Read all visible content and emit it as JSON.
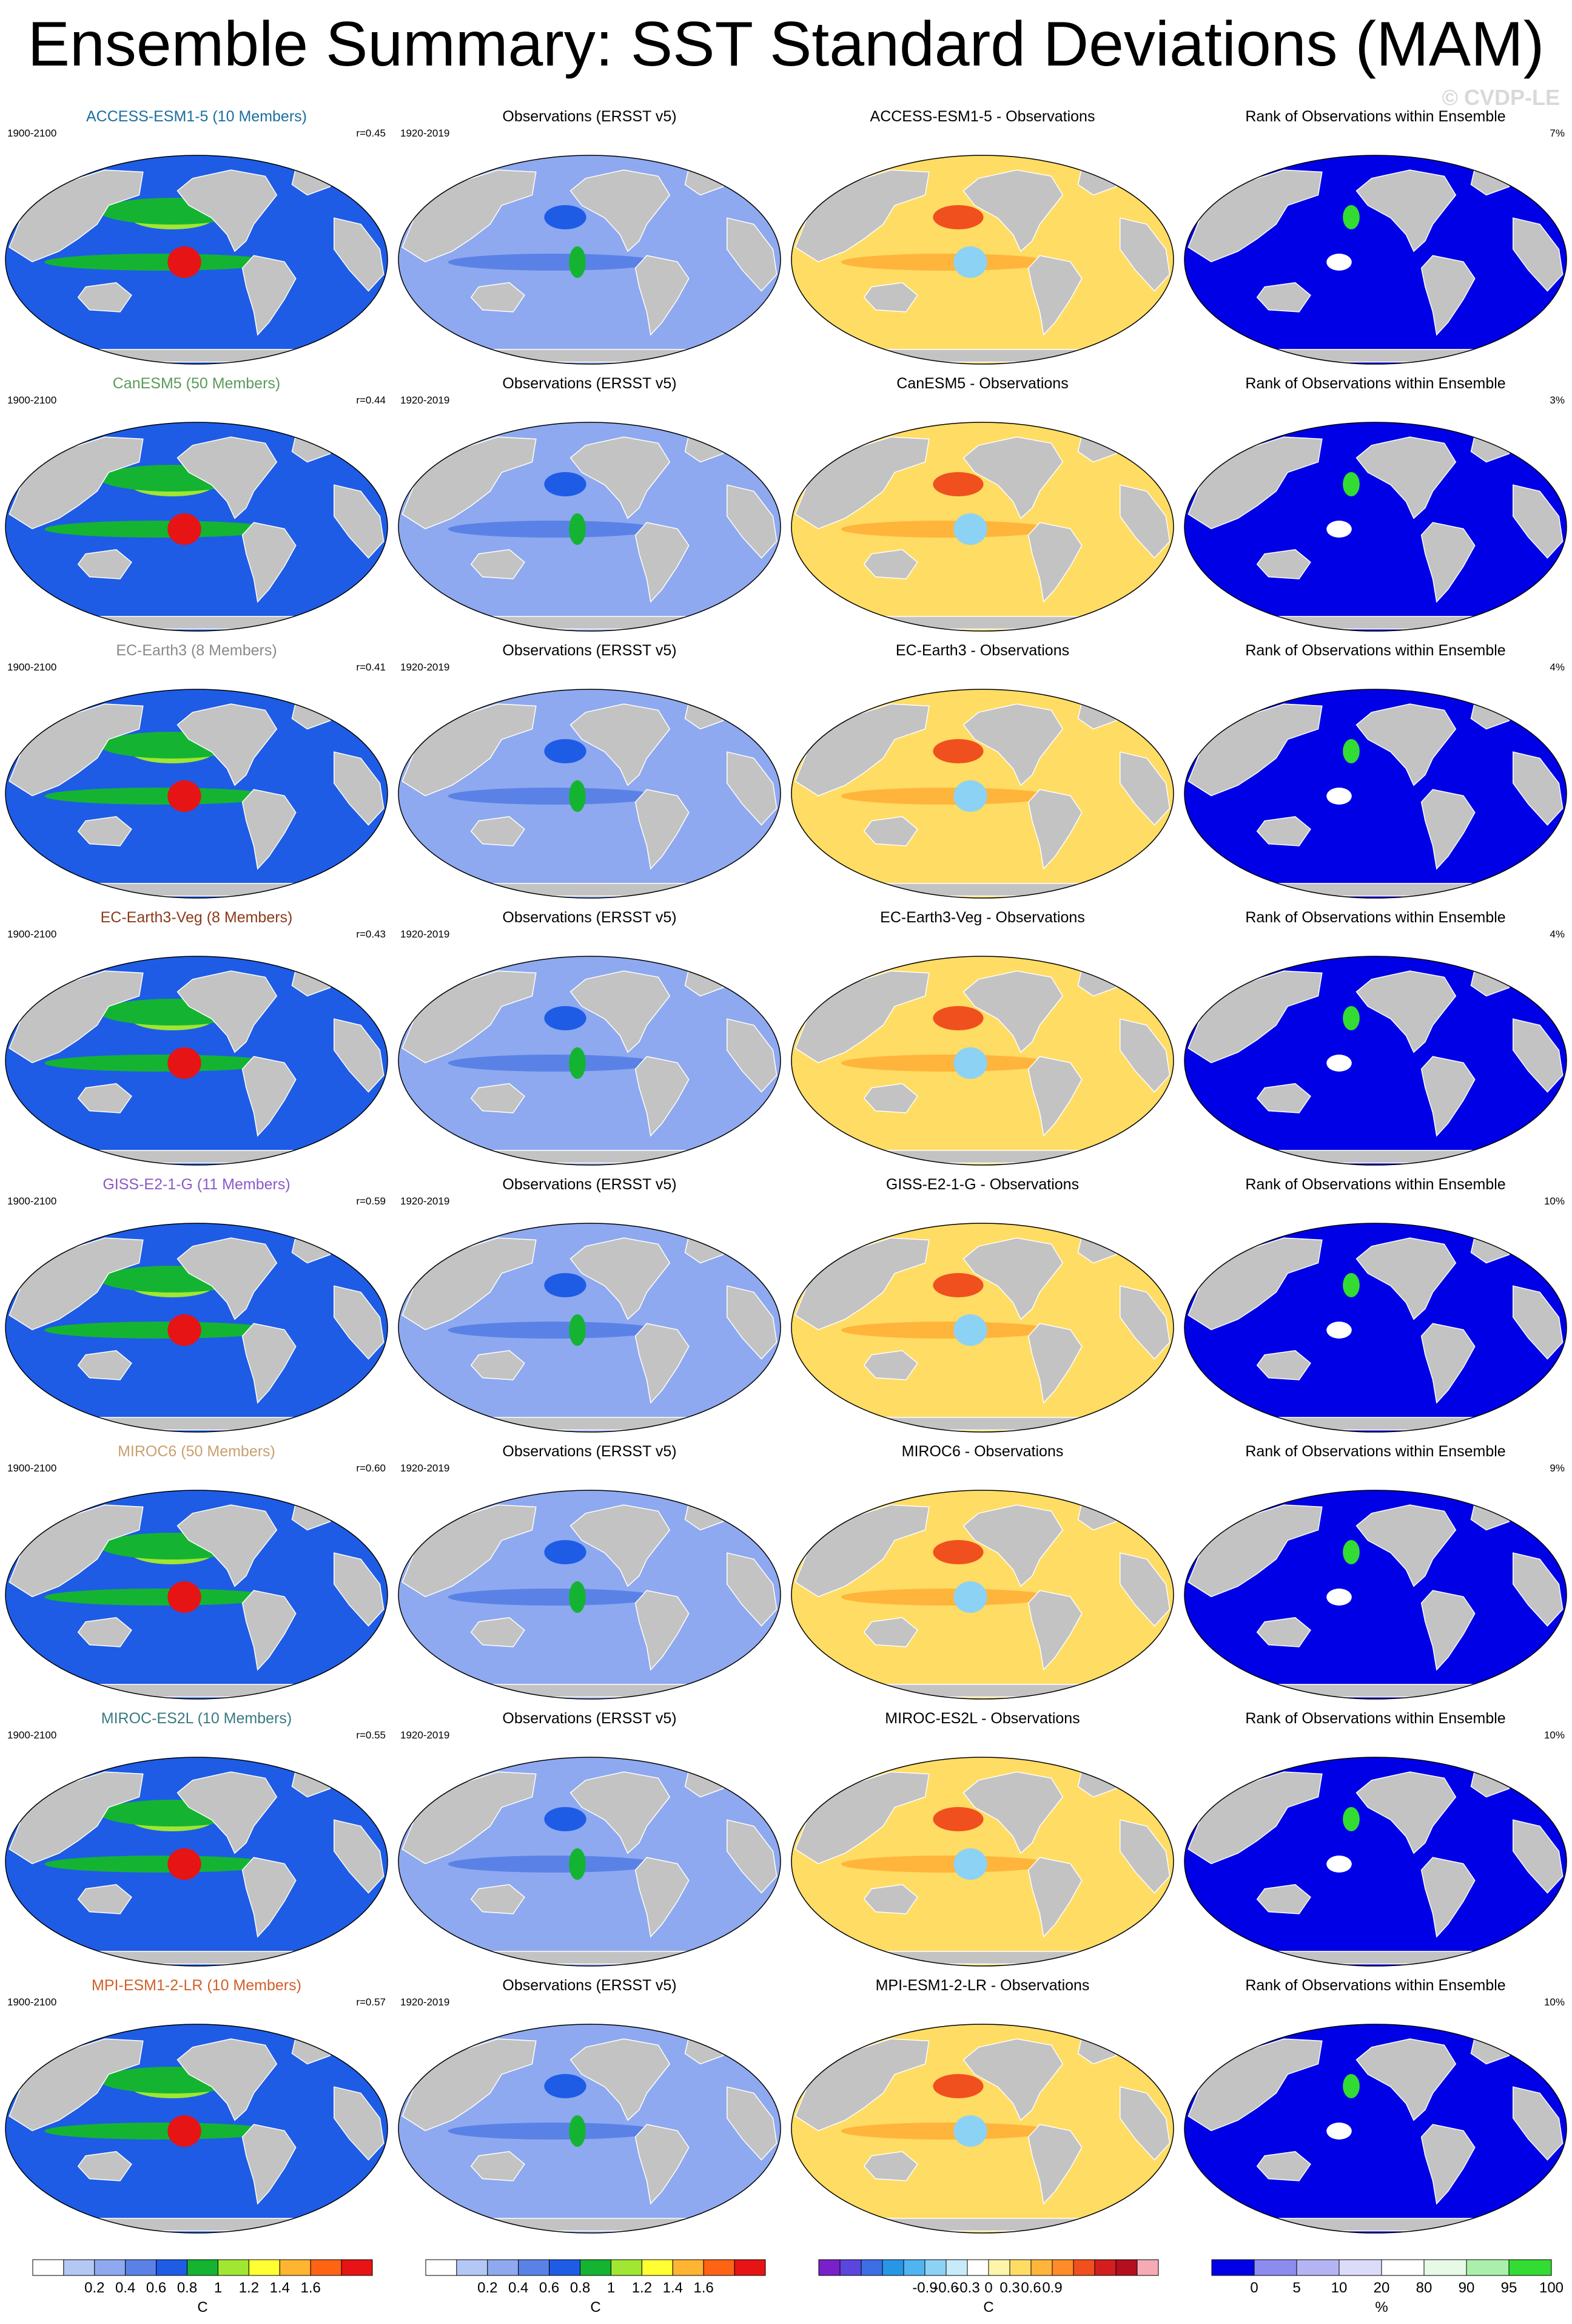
{
  "title": "Ensemble Summary: SST Standard Deviations (MAM)",
  "watermark": "© CVDP-LE",
  "rows": [
    {
      "model_title": "ACCESS-ESM1-5 (10 Members)",
      "model_color": "#1a6fa0",
      "years": "1900-2100",
      "r": "r=0.45",
      "obs_title": "Observations (ERSST v5)",
      "obs_years": "1920-2019",
      "diff_title": "ACCESS-ESM1-5 - Observations",
      "rank_title": "Rank of Observations within Ensemble",
      "rank_pct": "7%"
    },
    {
      "model_title": "CanESM5 (50 Members)",
      "model_color": "#5a9a5a",
      "years": "1900-2100",
      "r": "r=0.44",
      "obs_title": "Observations (ERSST v5)",
      "obs_years": "1920-2019",
      "diff_title": "CanESM5 - Observations",
      "rank_title": "Rank of Observations within Ensemble",
      "rank_pct": "3%"
    },
    {
      "model_title": "EC-Earth3 (8 Members)",
      "model_color": "#8a8a8a",
      "years": "1900-2100",
      "r": "r=0.41",
      "obs_title": "Observations (ERSST v5)",
      "obs_years": "1920-2019",
      "diff_title": "EC-Earth3 - Observations",
      "rank_title": "Rank of Observations within Ensemble",
      "rank_pct": "4%"
    },
    {
      "model_title": "EC-Earth3-Veg (8 Members)",
      "model_color": "#8b3a1a",
      "years": "1900-2100",
      "r": "r=0.43",
      "obs_title": "Observations (ERSST v5)",
      "obs_years": "1920-2019",
      "diff_title": "EC-Earth3-Veg - Observations",
      "rank_title": "Rank of Observations within Ensemble",
      "rank_pct": "4%"
    },
    {
      "model_title": "GISS-E2-1-G (11 Members)",
      "model_color": "#8a5ac8",
      "years": "1900-2100",
      "r": "r=0.59",
      "obs_title": "Observations (ERSST v5)",
      "obs_years": "1920-2019",
      "diff_title": "GISS-E2-1-G - Observations",
      "rank_title": "Rank of Observations within Ensemble",
      "rank_pct": "10%"
    },
    {
      "model_title": "MIROC6 (50 Members)",
      "model_color": "#c8a070",
      "years": "1900-2100",
      "r": "r=0.60",
      "obs_title": "Observations (ERSST v5)",
      "obs_years": "1920-2019",
      "diff_title": "MIROC6 - Observations",
      "rank_title": "Rank of Observations within Ensemble",
      "rank_pct": "9%"
    },
    {
      "model_title": "MIROC-ES2L (10 Members)",
      "model_color": "#3a7a80",
      "years": "1900-2100",
      "r": "r=0.55",
      "obs_title": "Observations (ERSST v5)",
      "obs_years": "1920-2019",
      "diff_title": "MIROC-ES2L - Observations",
      "rank_title": "Rank of Observations within Ensemble",
      "rank_pct": "10%"
    },
    {
      "model_title": "MPI-ESM1-2-LR (10 Members)",
      "model_color": "#d0602a",
      "years": "1900-2100",
      "r": "r=0.57",
      "obs_title": "Observations (ERSST v5)",
      "obs_years": "1920-2019",
      "diff_title": "MPI-ESM1-2-LR - Observations",
      "rank_title": "Rank of Observations within Ensemble",
      "rank_pct": "10%"
    }
  ],
  "colorbars": [
    {
      "name": "model-sd",
      "unit": "C",
      "labels": [
        "0.2",
        "0.4",
        "0.6",
        "0.8",
        "1",
        "1.2",
        "1.4",
        "1.6"
      ],
      "colors": [
        "#ffffff",
        "#b4c8f5",
        "#8ea9ef",
        "#5a82e6",
        "#1e5ce6",
        "#14b432",
        "#a0e632",
        "#ffff32",
        "#ffb432",
        "#ff6414",
        "#e61414"
      ]
    },
    {
      "name": "obs-sd",
      "unit": "C",
      "labels": [
        "0.2",
        "0.4",
        "0.6",
        "0.8",
        "1",
        "1.2",
        "1.4",
        "1.6"
      ],
      "colors": [
        "#ffffff",
        "#b4c8f5",
        "#8ea9ef",
        "#5a82e6",
        "#1e5ce6",
        "#14b432",
        "#a0e632",
        "#ffff32",
        "#ffb432",
        "#ff6414",
        "#e61414"
      ]
    },
    {
      "name": "diff",
      "unit": "C",
      "labels": [
        "-0.9",
        "-0.6",
        "-0.3",
        "0",
        "0.3",
        "0.6",
        "0.9"
      ],
      "colors": [
        "#7a20c8",
        "#5a46dc",
        "#3c6ee6",
        "#2896e6",
        "#50b4f0",
        "#8cd2f5",
        "#c8ebfa",
        "#ffffff",
        "#fff5aa",
        "#ffdc64",
        "#ffb43c",
        "#ff8c28",
        "#f0501e",
        "#d21e1e",
        "#b40f1e",
        "#f5aab4"
      ]
    },
    {
      "name": "rank",
      "unit": "%",
      "labels": [
        "0",
        "5",
        "10",
        "20",
        "80",
        "90",
        "95",
        "100"
      ],
      "colors": [
        "#0000e6",
        "#8c8cf0",
        "#b4b4f5",
        "#dcdcfa",
        "#ffffff",
        "#e6fae6",
        "#aaf0aa",
        "#32dc32"
      ]
    }
  ]
}
